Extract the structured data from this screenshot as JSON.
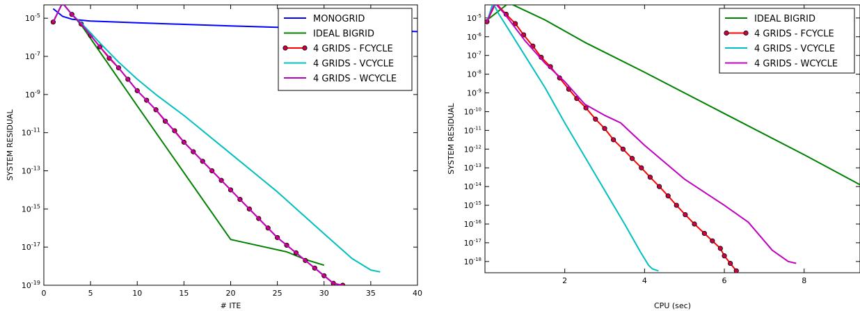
{
  "chart_data": [
    {
      "type": "line",
      "title": "",
      "xlabel": "# ITE",
      "ylabel": "SYSTEM RESIDUAL",
      "xlim": [
        0,
        40
      ],
      "ylim_exp": [
        -19,
        -4.3
      ],
      "yscale": "log",
      "x_ticks": [
        0,
        5,
        10,
        15,
        20,
        25,
        30,
        35,
        40
      ],
      "y_tick_exps": [
        -19,
        -17,
        -15,
        -13,
        -11,
        -9,
        -7,
        -5
      ],
      "y_tick_base": "10",
      "legend_position": "top-right",
      "series": [
        {
          "name": "MONOGRID",
          "color": "#0000ff",
          "marker": false,
          "x": [
            1,
            2,
            3,
            5,
            10,
            15,
            20,
            25,
            30,
            35,
            40
          ],
          "y_exp": [
            -4.5,
            -4.9,
            -5.05,
            -5.15,
            -5.24,
            -5.32,
            -5.4,
            -5.48,
            -5.56,
            -5.63,
            -5.7
          ]
        },
        {
          "name": "IDEAL BIGRID",
          "color": "#008000",
          "marker": false,
          "x": [
            1,
            2,
            3,
            4,
            10,
            20,
            26,
            28,
            30
          ],
          "y_exp": [
            -5.2,
            -4.2,
            -4.8,
            -5.35,
            -9.6,
            -16.6,
            -17.25,
            -17.65,
            -17.95
          ]
        },
        {
          "name": "4 GRIDS - FCYCLE",
          "color": "#ff0000",
          "marker": true,
          "marker_color": "#cc0044",
          "x": [
            1,
            2,
            3,
            4,
            5,
            6,
            7,
            8,
            9,
            10,
            11,
            12,
            13,
            14,
            15,
            16,
            17,
            18,
            19,
            20,
            21,
            22,
            23,
            24,
            25,
            26,
            27,
            28,
            29,
            30,
            31,
            32
          ],
          "y_exp": [
            -5.2,
            -4.2,
            -4.8,
            -5.3,
            -5.9,
            -6.5,
            -7.1,
            -7.6,
            -8.2,
            -8.8,
            -9.3,
            -9.8,
            -10.4,
            -10.9,
            -11.5,
            -12.0,
            -12.5,
            -13.0,
            -13.5,
            -14.0,
            -14.5,
            -15.0,
            -15.5,
            -16.0,
            -16.5,
            -16.9,
            -17.3,
            -17.7,
            -18.1,
            -18.5,
            -18.9,
            -19.0
          ]
        },
        {
          "name": "4 GRIDS - VCYCLE",
          "color": "#00bfbf",
          "marker": false,
          "x": [
            1,
            2,
            3,
            4,
            6,
            8,
            10,
            12,
            15,
            20,
            25,
            30,
            33,
            35,
            36
          ],
          "y_exp": [
            -5.2,
            -4.2,
            -4.8,
            -5.25,
            -6.3,
            -7.3,
            -8.2,
            -9.0,
            -10.1,
            -12.1,
            -14.1,
            -16.3,
            -17.6,
            -18.2,
            -18.3
          ]
        },
        {
          "name": "4 GRIDS - WCYCLE",
          "color": "#bf00bf",
          "marker": false,
          "x": [
            1,
            2,
            3,
            4,
            6,
            8,
            10,
            12,
            15,
            20,
            25,
            30,
            31,
            32
          ],
          "y_exp": [
            -5.2,
            -4.2,
            -4.8,
            -5.3,
            -6.5,
            -7.6,
            -8.8,
            -9.8,
            -11.5,
            -14.0,
            -16.5,
            -18.5,
            -18.9,
            -19.0
          ]
        }
      ]
    },
    {
      "type": "line",
      "title": "",
      "xlabel": "CPU (sec)",
      "ylabel": "SYSTEM RESIDUAL",
      "xlim": [
        0,
        9.4
      ],
      "ylim_exp": [
        -18.6,
        -4.3
      ],
      "yscale": "log",
      "x_ticks": [
        2,
        4,
        6,
        8
      ],
      "y_tick_exps": [
        -18,
        -17,
        -16,
        -15,
        -14,
        -13,
        -12,
        -11,
        -10,
        -9,
        -8,
        -7,
        -6,
        -5
      ],
      "y_tick_base": "10",
      "legend_position": "top-right",
      "series": [
        {
          "name": "IDEAL BIGRID",
          "color": "#008000",
          "marker": false,
          "x": [
            0,
            0.6,
            1.5,
            2.5,
            4,
            6,
            8,
            9.4
          ],
          "y_exp": [
            -5.2,
            -4.2,
            -5.1,
            -6.3,
            -7.9,
            -10.1,
            -12.3,
            -13.9
          ]
        },
        {
          "name": "4 GRIDS - FCYCLE",
          "color": "#ff0000",
          "marker": true,
          "marker_color": "#cc0044",
          "x": [
            0.05,
            0.27,
            0.53,
            0.76,
            0.97,
            1.2,
            1.41,
            1.64,
            1.87,
            2.1,
            2.3,
            2.53,
            2.77,
            3.0,
            3.22,
            3.46,
            3.69,
            3.92,
            4.14,
            4.37,
            4.59,
            4.8,
            5.02,
            5.25,
            5.5,
            5.7,
            5.9,
            6.0,
            6.15,
            6.3,
            6.45,
            6.6
          ],
          "y_exp": [
            -5.2,
            -4.2,
            -4.8,
            -5.3,
            -5.9,
            -6.5,
            -7.1,
            -7.6,
            -8.2,
            -8.8,
            -9.3,
            -9.8,
            -10.4,
            -10.9,
            -11.5,
            -12.0,
            -12.5,
            -13.0,
            -13.5,
            -14.0,
            -14.5,
            -15.0,
            -15.5,
            -16.0,
            -16.5,
            -16.9,
            -17.3,
            -17.7,
            -18.1,
            -18.5,
            -18.9,
            -19.0
          ]
        },
        {
          "name": "4 GRIDS - VCYCLE",
          "color": "#00bfbf",
          "marker": false,
          "x": [
            0.05,
            0.2,
            0.35,
            0.5,
            1.0,
            1.5,
            2.0,
            2.5,
            3.0,
            3.5,
            3.9,
            4.1,
            4.2,
            4.35
          ],
          "y_exp": [
            -5.2,
            -4.2,
            -4.8,
            -5.3,
            -7.0,
            -8.7,
            -10.6,
            -12.4,
            -14.2,
            -16.0,
            -17.5,
            -18.2,
            -18.4,
            -18.5
          ]
        },
        {
          "name": "4 GRIDS - WCYCLE",
          "color": "#bf00bf",
          "marker": false,
          "x": [
            0.05,
            0.25,
            0.5,
            1.0,
            1.5,
            2.0,
            2.5,
            3.0,
            3.4,
            4.0,
            5.0,
            6.0,
            6.6,
            7.2,
            7.6,
            7.8
          ],
          "y_exp": [
            -5.2,
            -4.2,
            -4.8,
            -6.2,
            -7.4,
            -8.4,
            -9.6,
            -10.2,
            -10.6,
            -11.8,
            -13.6,
            -15.0,
            -15.9,
            -17.4,
            -18.0,
            -18.1
          ]
        }
      ]
    }
  ]
}
